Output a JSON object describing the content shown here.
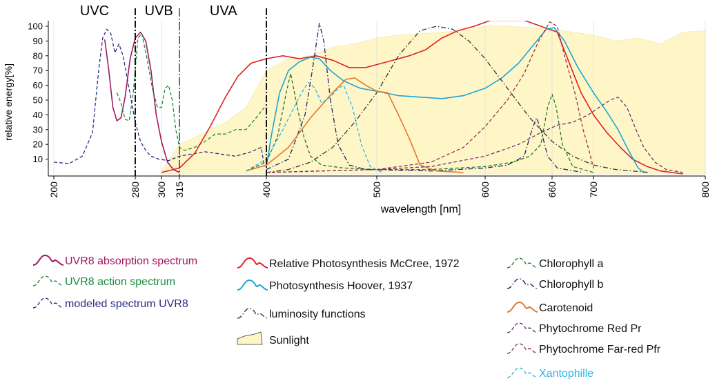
{
  "chart_data": {
    "type": "line",
    "xlabel": "wavelength [nm]",
    "ylabel": "relative energy[%]",
    "x_ticks": [
      "200",
      "280",
      "300",
      "315",
      "400",
      "500",
      "600",
      "660",
      "700",
      "800"
    ],
    "y_ticks": [
      "10",
      "20",
      "30",
      "40",
      "50",
      "60",
      "70",
      "80",
      "90",
      "100"
    ],
    "xlim": [
      200,
      800
    ],
    "ylim": [
      0,
      105
    ],
    "band_labels": [
      {
        "label": "UVC",
        "x": 240
      },
      {
        "label": "UVB",
        "x": 298
      },
      {
        "label": "UVA",
        "x": 358
      }
    ],
    "band_boundaries": [
      280,
      315,
      400
    ],
    "grid": "vertical lines at tick positions",
    "series": [
      {
        "name": "Sunlight",
        "color": "#fff6c8",
        "style": "fill",
        "points": [
          [
            300,
            2
          ],
          [
            315,
            20
          ],
          [
            340,
            28
          ],
          [
            360,
            35
          ],
          [
            380,
            45
          ],
          [
            400,
            70
          ],
          [
            420,
            78
          ],
          [
            440,
            80
          ],
          [
            460,
            86
          ],
          [
            480,
            88
          ],
          [
            500,
            92
          ],
          [
            520,
            94
          ],
          [
            540,
            95
          ],
          [
            560,
            96
          ],
          [
            580,
            97
          ],
          [
            600,
            100
          ],
          [
            620,
            100
          ],
          [
            640,
            99
          ],
          [
            660,
            98
          ],
          [
            680,
            96
          ],
          [
            700,
            94
          ],
          [
            720,
            90
          ],
          [
            740,
            92
          ],
          [
            760,
            88
          ],
          [
            780,
            96
          ],
          [
            800,
            97
          ]
        ]
      },
      {
        "name": "UVR8 absorption spectrum",
        "color": "#a0165e",
        "style": "solid",
        "points": [
          [
            250,
            91
          ],
          [
            254,
            70
          ],
          [
            258,
            45
          ],
          [
            262,
            36
          ],
          [
            266,
            38
          ],
          [
            270,
            52
          ],
          [
            275,
            78
          ],
          [
            280,
            92
          ],
          [
            284,
            96
          ],
          [
            288,
            90
          ],
          [
            292,
            70
          ],
          [
            296,
            40
          ],
          [
            300,
            22
          ],
          [
            305,
            8
          ],
          [
            310,
            3
          ],
          [
            315,
            1
          ]
        ]
      },
      {
        "name": "UVR8 action spectrum",
        "color": "#1c8a3e",
        "style": "dashed",
        "points": [
          [
            262,
            55
          ],
          [
            266,
            48
          ],
          [
            270,
            37
          ],
          [
            274,
            36
          ],
          [
            278,
            55
          ],
          [
            282,
            92
          ],
          [
            285,
            95
          ],
          [
            289,
            78
          ],
          [
            293,
            58
          ],
          [
            297,
            45
          ],
          [
            300,
            45
          ],
          [
            303,
            58
          ],
          [
            306,
            60
          ],
          [
            309,
            50
          ],
          [
            312,
            30
          ],
          [
            315,
            18
          ],
          [
            320,
            16
          ],
          [
            330,
            18
          ],
          [
            340,
            22
          ],
          [
            350,
            27
          ],
          [
            360,
            27
          ],
          [
            370,
            30
          ],
          [
            380,
            30
          ],
          [
            390,
            38
          ],
          [
            398,
            45
          ]
        ]
      },
      {
        "name": "modeled spectrum UVR8",
        "color": "#2a2a86",
        "style": "dashed",
        "points": [
          [
            200,
            8
          ],
          [
            215,
            7
          ],
          [
            228,
            12
          ],
          [
            238,
            28
          ],
          [
            244,
            70
          ],
          [
            248,
            92
          ],
          [
            252,
            98
          ],
          [
            256,
            95
          ],
          [
            260,
            82
          ],
          [
            264,
            88
          ],
          [
            268,
            80
          ],
          [
            272,
            65
          ],
          [
            276,
            50
          ],
          [
            280,
            35
          ],
          [
            284,
            22
          ],
          [
            288,
            16
          ],
          [
            292,
            12
          ],
          [
            298,
            10
          ],
          [
            306,
            9
          ],
          [
            315,
            12
          ],
          [
            340,
            15
          ],
          [
            370,
            12
          ],
          [
            385,
            15
          ],
          [
            395,
            18
          ],
          [
            398,
            5
          ]
        ]
      },
      {
        "name": "Relative Photosynthesis McCree, 1972",
        "color": "#e02020",
        "style": "solid",
        "points": [
          [
            300,
            1
          ],
          [
            315,
            4
          ],
          [
            330,
            14
          ],
          [
            345,
            32
          ],
          [
            360,
            52
          ],
          [
            372,
            66
          ],
          [
            385,
            75
          ],
          [
            400,
            78
          ],
          [
            415,
            80
          ],
          [
            430,
            78
          ],
          [
            445,
            80
          ],
          [
            460,
            77
          ],
          [
            475,
            72
          ],
          [
            490,
            72
          ],
          [
            510,
            76
          ],
          [
            530,
            80
          ],
          [
            545,
            84
          ],
          [
            560,
            92
          ],
          [
            575,
            97
          ],
          [
            590,
            100
          ],
          [
            605,
            104
          ],
          [
            620,
            104
          ],
          [
            635,
            104
          ],
          [
            650,
            100
          ],
          [
            665,
            96
          ],
          [
            675,
            78
          ],
          [
            688,
            55
          ],
          [
            700,
            40
          ],
          [
            712,
            28
          ],
          [
            724,
            18
          ],
          [
            735,
            10
          ],
          [
            748,
            5
          ],
          [
            760,
            2
          ],
          [
            780,
            0
          ]
        ]
      },
      {
        "name": "Photosynthesis Hoover, 1937",
        "color": "#1aa6d6",
        "style": "solid",
        "points": [
          [
            400,
            5
          ],
          [
            405,
            28
          ],
          [
            412,
            55
          ],
          [
            420,
            70
          ],
          [
            430,
            76
          ],
          [
            440,
            79
          ],
          [
            448,
            78
          ],
          [
            458,
            70
          ],
          [
            470,
            63
          ],
          [
            485,
            58
          ],
          [
            500,
            56
          ],
          [
            520,
            53
          ],
          [
            540,
            52
          ],
          [
            560,
            51
          ],
          [
            580,
            53
          ],
          [
            600,
            58
          ],
          [
            615,
            65
          ],
          [
            630,
            75
          ],
          [
            643,
            87
          ],
          [
            655,
            98
          ],
          [
            662,
            99
          ],
          [
            672,
            90
          ],
          [
            685,
            72
          ],
          [
            700,
            55
          ],
          [
            712,
            42
          ],
          [
            722,
            30
          ],
          [
            732,
            15
          ],
          [
            740,
            4
          ],
          [
            745,
            1
          ]
        ]
      },
      {
        "name": "luminosity functions",
        "color": "#333333",
        "style": "dashdot",
        "points": [
          [
            400,
            1
          ],
          [
            420,
            3
          ],
          [
            440,
            8
          ],
          [
            460,
            18
          ],
          [
            480,
            35
          ],
          [
            500,
            55
          ],
          [
            520,
            80
          ],
          [
            540,
            97
          ],
          [
            555,
            100
          ],
          [
            570,
            98
          ],
          [
            585,
            90
          ],
          [
            600,
            78
          ],
          [
            620,
            58
          ],
          [
            640,
            38
          ],
          [
            660,
            22
          ],
          [
            680,
            12
          ],
          [
            700,
            6
          ],
          [
            720,
            3
          ],
          [
            750,
            1
          ]
        ]
      },
      {
        "name": "Chlorophyll a",
        "color": "#1c7a30",
        "style": "dashed",
        "points": [
          [
            380,
            2
          ],
          [
            400,
            8
          ],
          [
            410,
            25
          ],
          [
            418,
            55
          ],
          [
            422,
            68
          ],
          [
            428,
            45
          ],
          [
            434,
            25
          ],
          [
            440,
            12
          ],
          [
            450,
            6
          ],
          [
            470,
            4
          ],
          [
            500,
            3
          ],
          [
            550,
            3
          ],
          [
            600,
            5
          ],
          [
            625,
            8
          ],
          [
            640,
            12
          ],
          [
            650,
            20
          ],
          [
            656,
            45
          ],
          [
            660,
            54
          ],
          [
            664,
            45
          ],
          [
            670,
            20
          ],
          [
            680,
            5
          ],
          [
            700,
            1
          ]
        ]
      },
      {
        "name": "Chlorophyll b",
        "color": "#22226e",
        "style": "dashdot",
        "points": [
          [
            400,
            3
          ],
          [
            420,
            10
          ],
          [
            435,
            40
          ],
          [
            442,
            72
          ],
          [
            448,
            102
          ],
          [
            452,
            90
          ],
          [
            458,
            50
          ],
          [
            465,
            20
          ],
          [
            475,
            6
          ],
          [
            490,
            3
          ],
          [
            550,
            2
          ],
          [
            600,
            4
          ],
          [
            620,
            6
          ],
          [
            635,
            12
          ],
          [
            642,
            30
          ],
          [
            646,
            38
          ],
          [
            650,
            30
          ],
          [
            656,
            12
          ],
          [
            665,
            4
          ],
          [
            690,
            1
          ]
        ]
      },
      {
        "name": "Carotenoid",
        "color": "#e07830",
        "style": "solid",
        "points": [
          [
            380,
            2
          ],
          [
            400,
            6
          ],
          [
            420,
            18
          ],
          [
            440,
            38
          ],
          [
            460,
            55
          ],
          [
            472,
            64
          ],
          [
            480,
            65
          ],
          [
            490,
            60
          ],
          [
            500,
            56
          ],
          [
            510,
            55
          ],
          [
            520,
            40
          ],
          [
            530,
            24
          ],
          [
            540,
            6
          ],
          [
            555,
            2
          ],
          [
            580,
            1
          ]
        ]
      },
      {
        "name": "Phytochrome Red Pr",
        "color": "#70306e",
        "style": "dashed",
        "points": [
          [
            400,
            1
          ],
          [
            450,
            2
          ],
          [
            500,
            3
          ],
          [
            550,
            5
          ],
          [
            600,
            12
          ],
          [
            630,
            20
          ],
          [
            650,
            28
          ],
          [
            665,
            33
          ],
          [
            680,
            35
          ],
          [
            695,
            40
          ],
          [
            705,
            45
          ],
          [
            715,
            50
          ],
          [
            722,
            52
          ],
          [
            730,
            45
          ],
          [
            738,
            30
          ],
          [
            745,
            18
          ],
          [
            755,
            8
          ],
          [
            765,
            3
          ],
          [
            780,
            1
          ]
        ]
      },
      {
        "name": "Phytochrome Far-red Pfr",
        "color": "#9a3050",
        "style": "dashed",
        "points": [
          [
            400,
            1
          ],
          [
            500,
            3
          ],
          [
            550,
            8
          ],
          [
            580,
            18
          ],
          [
            600,
            32
          ],
          [
            620,
            50
          ],
          [
            635,
            68
          ],
          [
            648,
            90
          ],
          [
            658,
            103
          ],
          [
            665,
            100
          ],
          [
            672,
            80
          ],
          [
            682,
            55
          ],
          [
            690,
            30
          ],
          [
            696,
            15
          ],
          [
            700,
            4
          ]
        ]
      },
      {
        "name": "Xantophille",
        "color": "#29b8e6",
        "style": "dashed",
        "points": [
          [
            380,
            2
          ],
          [
            400,
            10
          ],
          [
            415,
            30
          ],
          [
            425,
            45
          ],
          [
            432,
            55
          ],
          [
            438,
            62
          ],
          [
            444,
            58
          ],
          [
            450,
            48
          ],
          [
            458,
            52
          ],
          [
            465,
            58
          ],
          [
            470,
            60
          ],
          [
            478,
            45
          ],
          [
            486,
            20
          ],
          [
            494,
            5
          ],
          [
            505,
            1
          ]
        ]
      }
    ],
    "legend": {
      "placement": "bottom",
      "entries": [
        {
          "name": "UVR8 absorption spectrum",
          "text_color": "#a0165e"
        },
        {
          "name": "UVR8 action spectrum",
          "text_color": "#1c8a3e"
        },
        {
          "name": "modeled spectrum UVR8",
          "text_color": "#2a2a86"
        },
        {
          "name": "Relative Photosynthesis McCree, 1972",
          "text_color": "#111111"
        },
        {
          "name": "Photosynthesis Hoover, 1937",
          "text_color": "#111111"
        },
        {
          "name": "luminosity functions",
          "text_color": "#111111"
        },
        {
          "name": "Sunlight",
          "text_color": "#111111"
        },
        {
          "name": "Chlorophyll a",
          "text_color": "#111111"
        },
        {
          "name": "Chlorophyll b",
          "text_color": "#111111"
        },
        {
          "name": "Carotenoid",
          "text_color": "#111111"
        },
        {
          "name": "Phytochrome Red Pr",
          "text_color": "#111111"
        },
        {
          "name": "Phytochrome Far-red Pfr",
          "text_color": "#111111"
        },
        {
          "name": "Xantophille",
          "text_color": "#29b8e6"
        }
      ]
    }
  }
}
